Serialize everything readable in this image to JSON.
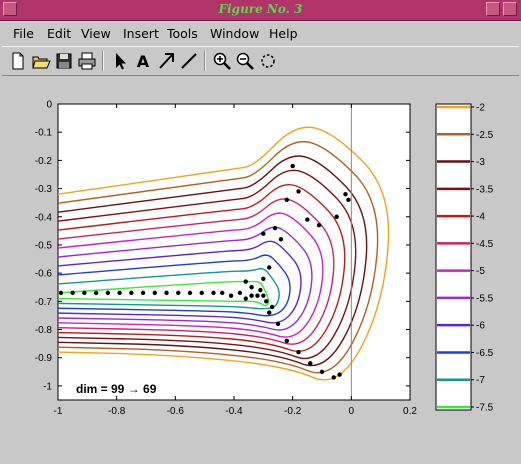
{
  "window": {
    "title": "Figure No. 3"
  },
  "menu": [
    "File",
    "Edit",
    "View",
    "Insert",
    "Tools",
    "Window",
    "Help"
  ],
  "toolbar": {
    "tools": [
      "new-file-icon",
      "open-folder-icon",
      "save-icon",
      "print-icon",
      "arrow-pointer-icon",
      "text-tool-icon",
      "arrow-tool-icon",
      "line-tool-icon",
      "zoom-in-icon",
      "zoom-out-icon",
      "rotate-icon"
    ]
  },
  "chart_data": {
    "type": "contour",
    "xlim": [
      -1,
      0.2
    ],
    "ylim": [
      -1.05,
      0
    ],
    "x_ticks": [
      "-1",
      "-0.8",
      "-0.6",
      "-0.4",
      "-0.2",
      "0",
      "0.2"
    ],
    "y_ticks": [
      "0",
      "-0.1",
      "-0.2",
      "-0.3",
      "-0.4",
      "-0.5",
      "-0.6",
      "-0.7",
      "-0.8",
      "-0.9",
      "-1"
    ],
    "vertical_line_x": 0,
    "annotation": "dim = 99 → 69",
    "annotation_position": "bottom-left",
    "colorbar": {
      "levels": [
        "-2",
        "-2.5",
        "-3",
        "-3.5",
        "-4",
        "-4.5",
        "-5",
        "-5.5",
        "-6",
        "-6.5",
        "-7",
        "-7.5"
      ],
      "colors": [
        "#f5a21a",
        "#b5601c",
        "#6a1010",
        "#8a0d0d",
        "#c41818",
        "#d2215e",
        "#d11ec9",
        "#9b26e2",
        "#5a22e6",
        "#1b3de0",
        "#0f9a8a",
        "#33ee33"
      ]
    },
    "points": [
      [
        -0.99,
        -0.67
      ],
      [
        -0.95,
        -0.67
      ],
      [
        -0.91,
        -0.67
      ],
      [
        -0.87,
        -0.67
      ],
      [
        -0.83,
        -0.67
      ],
      [
        -0.79,
        -0.67
      ],
      [
        -0.75,
        -0.67
      ],
      [
        -0.71,
        -0.67
      ],
      [
        -0.67,
        -0.67
      ],
      [
        -0.63,
        -0.67
      ],
      [
        -0.59,
        -0.67
      ],
      [
        -0.55,
        -0.67
      ],
      [
        -0.51,
        -0.67
      ],
      [
        -0.47,
        -0.67
      ],
      [
        -0.44,
        -0.67
      ],
      [
        -0.41,
        -0.68
      ],
      [
        -0.38,
        -0.67
      ],
      [
        -0.36,
        -0.69
      ],
      [
        -0.34,
        -0.68
      ],
      [
        -0.32,
        -0.68
      ],
      [
        -0.3,
        -0.68
      ],
      [
        -0.29,
        -0.7
      ],
      [
        -0.31,
        -0.66
      ],
      [
        -0.34,
        -0.65
      ],
      [
        -0.36,
        -0.63
      ],
      [
        -0.27,
        -0.72
      ],
      [
        -0.28,
        -0.74
      ],
      [
        -0.25,
        -0.78
      ],
      [
        -0.22,
        -0.84
      ],
      [
        -0.18,
        -0.88
      ],
      [
        -0.14,
        -0.92
      ],
      [
        -0.1,
        -0.95
      ],
      [
        -0.06,
        -0.97
      ],
      [
        -0.04,
        -0.96
      ],
      [
        -0.26,
        -0.44
      ],
      [
        -0.3,
        -0.46
      ],
      [
        -0.28,
        -0.58
      ],
      [
        -0.3,
        -0.62
      ],
      [
        -0.15,
        -0.41
      ],
      [
        -0.11,
        -0.43
      ],
      [
        -0.18,
        -0.31
      ],
      [
        -0.22,
        -0.34
      ],
      [
        -0.02,
        -0.32
      ],
      [
        -0.01,
        -0.34
      ],
      [
        -0.05,
        -0.4
      ],
      [
        -0.24,
        -0.48
      ],
      [
        -0.2,
        -0.22
      ]
    ]
  }
}
